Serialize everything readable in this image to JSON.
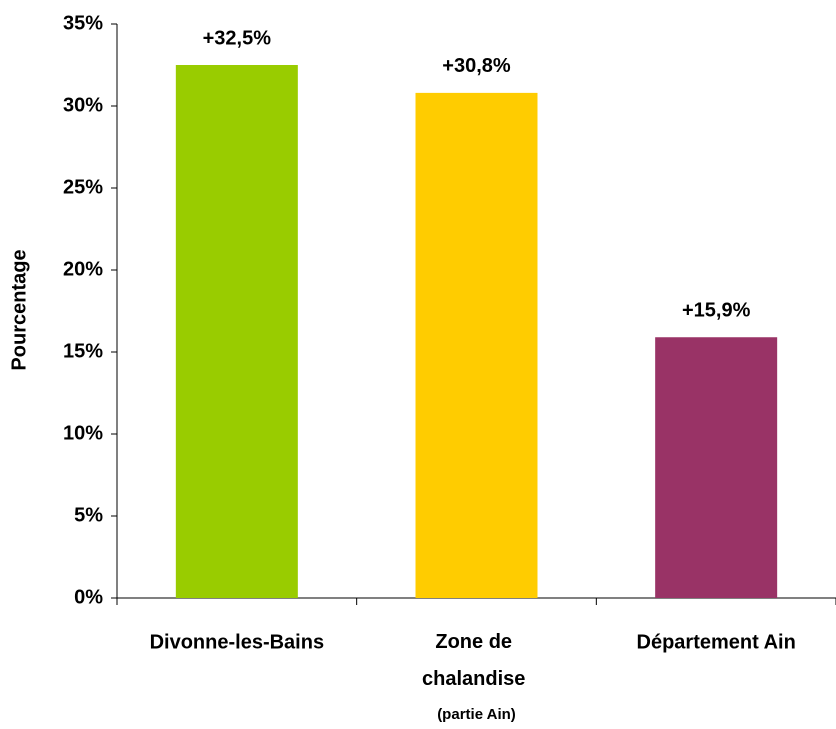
{
  "chart_data": {
    "type": "bar",
    "y_label": "Pourcentage",
    "categories": [
      "Divonne-les-Bains",
      "Zone de chalandise (partie Ain)",
      "Département Ain"
    ],
    "values": [
      32.5,
      30.8,
      15.9
    ],
    "value_labels": [
      "+32,5%",
      "+30,8%",
      "+15,9%"
    ],
    "colors": [
      "#99cc00",
      "#ffcc00",
      "#993366"
    ],
    "ylim": [
      0,
      35
    ],
    "yticks": [
      {
        "value": 0,
        "label": "0%"
      },
      {
        "value": 5,
        "label": "5%"
      },
      {
        "value": 10,
        "label": "10%"
      },
      {
        "value": 15,
        "label": "15%"
      },
      {
        "value": 20,
        "label": "20%"
      },
      {
        "value": 25,
        "label": "25%"
      },
      {
        "value": 30,
        "label": "30%"
      },
      {
        "value": 35,
        "label": "35%"
      }
    ],
    "grid": false
  }
}
